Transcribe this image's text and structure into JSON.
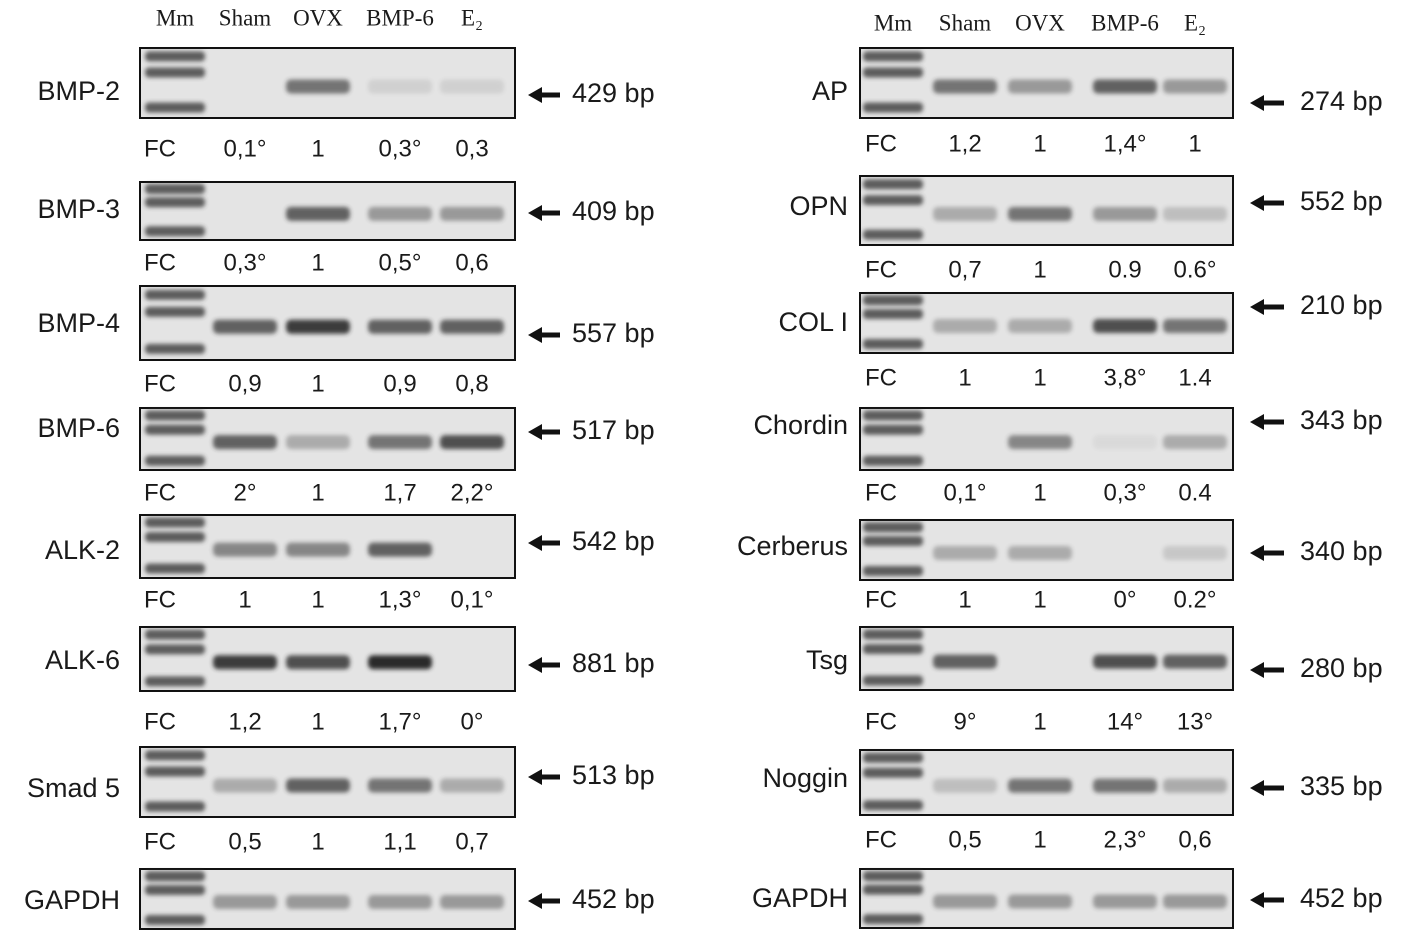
{
  "panels": [
    {
      "lane_headers": [
        "Mm",
        "Sham",
        "OVX",
        "BMP-6",
        "E₂"
      ],
      "rows": [
        {
          "gene": "BMP-2",
          "size": "429 bp",
          "fc_label": "FC",
          "fc": [
            "0,1°",
            "1",
            "0,3°",
            "0,3"
          ]
        },
        {
          "gene": "BMP-3",
          "size": "409 bp",
          "fc_label": "FC",
          "fc": [
            "0,3°",
            "1",
            "0,5°",
            "0,6"
          ]
        },
        {
          "gene": "BMP-4",
          "size": "557 bp",
          "fc_label": "FC",
          "fc": [
            "0,9",
            "1",
            "0,9",
            "0,8"
          ]
        },
        {
          "gene": "BMP-6",
          "size": "517 bp",
          "fc_label": "FC",
          "fc": [
            "2°",
            "1",
            "1,7",
            "2,2°"
          ]
        },
        {
          "gene": "ALK-2",
          "size": "542 bp",
          "fc_label": "FC",
          "fc": [
            "1",
            "1",
            "1,3°",
            "0,1°"
          ]
        },
        {
          "gene": "ALK-6",
          "size": "881 bp",
          "fc_label": "FC",
          "fc": [
            "1,2",
            "1",
            "1,7°",
            "0°"
          ]
        },
        {
          "gene": "Smad 5",
          "size": "513 bp",
          "fc_label": "FC",
          "fc": [
            "0,5",
            "1",
            "1,1",
            "0,7"
          ]
        },
        {
          "gene": "GAPDH",
          "size": "452 bp"
        }
      ]
    },
    {
      "lane_headers": [
        "Mm",
        "Sham",
        "OVX",
        "BMP-6",
        "E₂"
      ],
      "rows": [
        {
          "gene": "AP",
          "size": "274 bp",
          "fc_label": "FC",
          "fc": [
            "1,2",
            "1",
            "1,4°",
            "1"
          ]
        },
        {
          "gene": "OPN",
          "size": "552 bp",
          "fc_label": "FC",
          "fc": [
            "0,7",
            "1",
            "0.9",
            "0.6°"
          ]
        },
        {
          "gene": "COL I",
          "size": "210 bp",
          "fc_label": "FC",
          "fc": [
            "1",
            "1",
            "3,8°",
            "1.4"
          ]
        },
        {
          "gene": "Chordin",
          "size": "343 bp",
          "fc_label": "FC",
          "fc": [
            "0,1°",
            "1",
            "0,3°",
            "0.4"
          ]
        },
        {
          "gene": "Cerberus",
          "size": "340 bp",
          "fc_label": "FC",
          "fc": [
            "1",
            "1",
            "0°",
            "0.2°"
          ]
        },
        {
          "gene": "Tsg",
          "size": "280 bp",
          "fc_label": "FC",
          "fc": [
            "9°",
            "1",
            "14°",
            "13°"
          ]
        },
        {
          "gene": "Noggin",
          "size": "335 bp",
          "fc_label": "FC",
          "fc": [
            "0,5",
            "1",
            "2,3°",
            "0,6"
          ]
        },
        {
          "gene": "GAPDH",
          "size": "452 bp"
        }
      ]
    }
  ]
}
